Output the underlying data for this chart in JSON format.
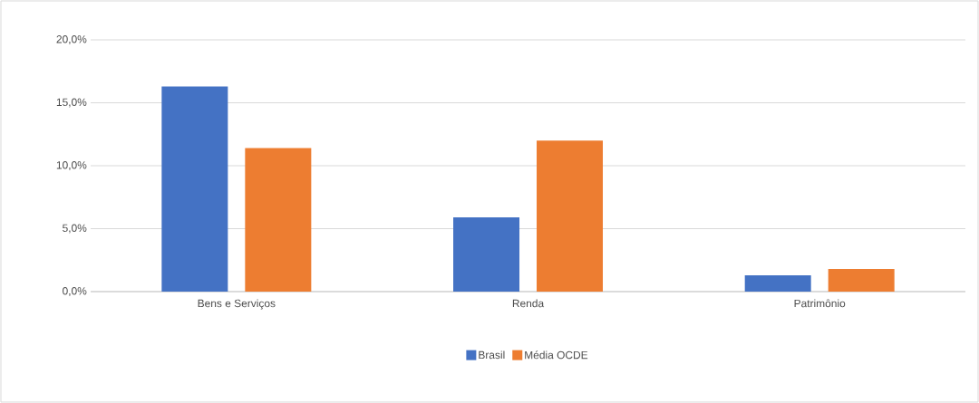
{
  "chart_data": {
    "type": "bar",
    "categories": [
      "Bens e Serviços",
      "Renda",
      "Patrimônio"
    ],
    "series": [
      {
        "name": "Brasil",
        "color": "#4472c4",
        "values": [
          16.3,
          5.9,
          1.3
        ]
      },
      {
        "name": "Média OCDE",
        "color": "#ed7d31",
        "values": [
          11.4,
          12.0,
          1.8
        ]
      }
    ],
    "ylim": [
      0,
      20
    ],
    "yticks": [
      {
        "value": 0,
        "label": "0,0%"
      },
      {
        "value": 5,
        "label": "5,0%"
      },
      {
        "value": 10,
        "label": "10,0%"
      },
      {
        "value": 15,
        "label": "15,0%"
      },
      {
        "value": 20,
        "label": "20,0%"
      }
    ],
    "grid": "y",
    "legend": "bottom"
  }
}
